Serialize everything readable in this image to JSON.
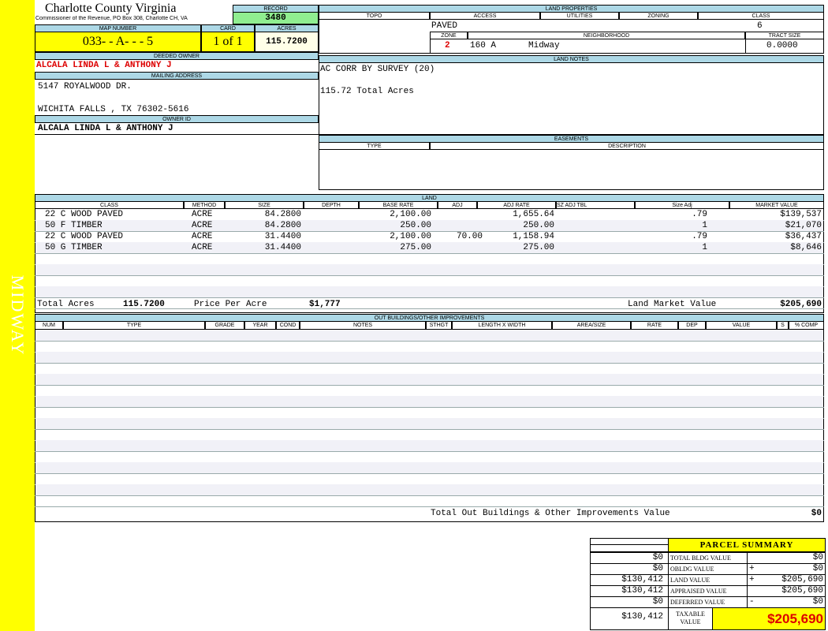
{
  "header": {
    "title": "Charlotte County Virginia",
    "subtitle": "Commissioner of the Revenue, PO Box 308, Charlotte CH, VA",
    "side_label": "MIDWAY"
  },
  "record": {
    "label": "RECORD",
    "value": "3480"
  },
  "map_number": {
    "label": "MAP NUMBER",
    "value": "033- - A- - - 5"
  },
  "card": {
    "label": "CARD",
    "value": "1 of 1"
  },
  "acres": {
    "label": "ACRES",
    "value": "115.7200"
  },
  "deeded_owner": {
    "label": "DEEDED OWNER",
    "value": "ALCALA LINDA L & ANTHONY J"
  },
  "mailing_address": {
    "label": "MAILING ADDRESS",
    "lines": [
      "5147 ROYALWOOD DR.",
      "WICHITA FALLS , TX 76302-5616"
    ]
  },
  "owner_id": {
    "label": "OWNER ID",
    "value": "ALCALA LINDA L & ANTHONY J"
  },
  "land_properties": {
    "title": "LAND PROPERTIES",
    "headers": [
      "TOPO",
      "ACCESS",
      "UTILITIES",
      "ZONING",
      "CLASS"
    ],
    "access": "PAVED",
    "class": "6",
    "zone_label": "ZONE",
    "zone": "2",
    "neighborhood_label": "NEIGHBORHOOD",
    "neighborhood_code": "160 A",
    "neighborhood": "Midway",
    "tract_label": "TRACT SIZE",
    "tract_size": "0.0000"
  },
  "land_notes": {
    "title": "LAND NOTES",
    "lines": [
      "AC CORR BY SURVEY (20)",
      "115.72 Total Acres"
    ]
  },
  "easements": {
    "title": "EASEMENTS",
    "headers": [
      "TYPE",
      "DESCRIPTION"
    ]
  },
  "land": {
    "title": "LAND",
    "headers": [
      "CLASS",
      "METHOD",
      "SIZE",
      "DEPTH",
      "BASE RATE",
      "ADJ",
      "ADJ RATE",
      "SZ ADJ TBL",
      "Size Adj",
      "MARKET VALUE"
    ],
    "rows": [
      [
        "22 C WOOD PAVED",
        "ACRE",
        "84.2800",
        null,
        "2,100.00",
        null,
        "1,655.64",
        null,
        ".79",
        "$139,537"
      ],
      [
        "50 F TIMBER",
        "ACRE",
        "84.2800",
        null,
        "250.00",
        null,
        "250.00",
        null,
        "1",
        "$21,070"
      ],
      [
        "22 C WOOD PAVED",
        "ACRE",
        "31.4400",
        null,
        "2,100.00",
        "70.00",
        "1,158.94",
        null,
        ".79",
        "$36,437"
      ],
      [
        "50 G TIMBER",
        "ACRE",
        "31.4400",
        null,
        "275.00",
        null,
        "275.00",
        null,
        "1",
        "$8,646"
      ]
    ],
    "total_acres_label": "Total Acres",
    "total_acres": "115.7200",
    "price_per_acre_label": "Price Per Acre",
    "price_per_acre": "$1,777",
    "market_value_label": "Land Market Value",
    "market_value": "$205,690"
  },
  "outbuildings": {
    "title": "OUT BUILDINGS/OTHER IMPROVEMENTS",
    "headers": [
      "NUM",
      "TYPE",
      "GRADE",
      "YEAR",
      "COND",
      "NOTES",
      "STHGT",
      "LENGTH X WIDTH",
      "AREA/SIZE",
      "RATE",
      "DEP",
      "VALUE",
      "S",
      "% COMP"
    ],
    "total_label": "Total Out Buildings & Other Improvements Value",
    "total": "$0"
  },
  "parcel_summary": {
    "title": "PARCEL SUMMARY",
    "rows": [
      {
        "prior": "$0",
        "label": "TOTAL BLDG VALUE",
        "op": null,
        "value": "$0"
      },
      {
        "prior": "$0",
        "label": "OBLDG VALUE",
        "op": "+",
        "value": "$0"
      },
      {
        "prior": "$130,412",
        "label": "LAND VALUE",
        "op": "+",
        "value": "$205,690"
      },
      {
        "prior": "$130,412",
        "label": "APPRAISED VALUE",
        "op": null,
        "value": "$205,690"
      },
      {
        "prior": "$0",
        "label": "DEFERRED VALUE",
        "op": "-",
        "value": "$0"
      }
    ],
    "taxable_prior": "$130,412",
    "taxable_label": "TAXABLE VALUE",
    "taxable_value": "$205,690"
  }
}
